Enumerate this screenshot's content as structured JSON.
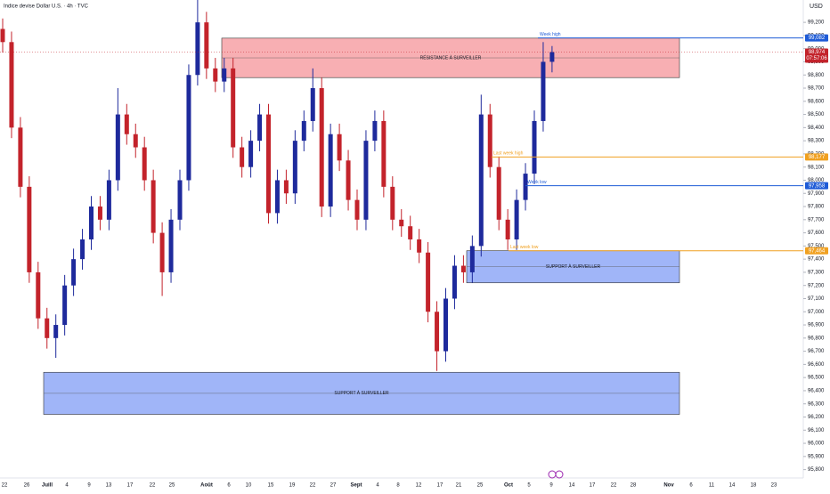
{
  "chart_data": {
    "type": "candlestick",
    "title": "Indice devise Dollar U.S. · 4h · TVC",
    "currency": "USD",
    "x_labels": [
      "22",
      "26",
      "Juill",
      "4",
      "9",
      "13",
      "17",
      "22",
      "25",
      "Août",
      "6",
      "10",
      "15",
      "19",
      "22",
      "27",
      "Sept",
      "4",
      "8",
      "12",
      "17",
      "21",
      "25",
      "Oct",
      "5",
      "9",
      "14",
      "17",
      "22",
      "28",
      "Nov",
      "6",
      "11",
      "14",
      "18",
      "23"
    ],
    "open": [
      99150,
      99050,
      98400,
      97950,
      97300,
      96950,
      96800,
      96900,
      97200,
      97400,
      97550,
      97800,
      97700,
      98000,
      98500,
      98350,
      98250,
      98000,
      97600,
      97300,
      97700,
      98000,
      98800,
      99200,
      98850,
      98750,
      98850,
      98250,
      98100,
      98300,
      98500,
      97750,
      98000,
      97900,
      98300,
      98450,
      98700,
      97800,
      98350,
      98150,
      97850,
      97700,
      98300,
      98450,
      97950,
      97700,
      97650,
      97550,
      97450,
      97000,
      96700,
      97100,
      97350,
      97300,
      97500,
      98500,
      98100,
      97700,
      97550,
      97850,
      98050,
      98450,
      98900
    ],
    "high": [
      99230,
      99130,
      98480,
      98030,
      97380,
      97030,
      96980,
      97280,
      97480,
      97630,
      97880,
      97880,
      98080,
      98700,
      98580,
      98430,
      98330,
      98080,
      97680,
      97780,
      98080,
      98880,
      99370,
      99280,
      98930,
      98930,
      98930,
      98330,
      98380,
      98580,
      98580,
      98080,
      98080,
      98380,
      98530,
      98850,
      98780,
      98430,
      98430,
      98230,
      97930,
      98380,
      98530,
      98530,
      98030,
      97780,
      97730,
      97630,
      97530,
      97080,
      97180,
      97430,
      97430,
      97580,
      98650,
      98580,
      98180,
      97780,
      97930,
      98130,
      98530,
      99050,
      99020
    ],
    "low": [
      98970,
      98320,
      97870,
      97220,
      96870,
      96720,
      96650,
      96820,
      97120,
      97320,
      97470,
      97620,
      97620,
      97920,
      98270,
      98170,
      97920,
      97520,
      97120,
      97220,
      97620,
      97920,
      98720,
      98770,
      98670,
      98670,
      98170,
      98020,
      98020,
      98220,
      97670,
      97670,
      97820,
      97820,
      98220,
      98370,
      97720,
      97720,
      98070,
      97770,
      97620,
      97620,
      98220,
      97870,
      97620,
      97570,
      97470,
      97370,
      96920,
      96550,
      96620,
      97020,
      97220,
      97220,
      97420,
      98020,
      97620,
      97470,
      97470,
      97770,
      97970,
      98370,
      98820
    ],
    "close": [
      99050,
      98400,
      97950,
      97300,
      96950,
      96800,
      96900,
      97200,
      97400,
      97550,
      97800,
      97700,
      98000,
      98500,
      98350,
      98250,
      98000,
      97600,
      97300,
      97700,
      98000,
      98800,
      99200,
      98850,
      98750,
      98850,
      98250,
      98100,
      98300,
      98500,
      97750,
      98000,
      97900,
      98300,
      98450,
      98700,
      97800,
      98350,
      98150,
      97850,
      97700,
      98300,
      98450,
      97950,
      97700,
      97650,
      97550,
      97450,
      97000,
      96700,
      97100,
      97350,
      97300,
      97500,
      98500,
      98100,
      97700,
      97550,
      97850,
      98050,
      98450,
      98900,
      98974
    ],
    "up_color": "#1e2a9c",
    "down_color": "#c3232b",
    "ylim": [
      95750,
      99370
    ],
    "yticks": [
      {
        "value": 95800,
        "label": "95,800"
      },
      {
        "value": 95900,
        "label": "95,900"
      },
      {
        "value": 96000,
        "label": "96,000"
      },
      {
        "value": 96100,
        "label": "96,100"
      },
      {
        "value": 96200,
        "label": "96,200"
      },
      {
        "value": 96300,
        "label": "96,300"
      },
      {
        "value": 96400,
        "label": "96,400"
      },
      {
        "value": 96500,
        "label": "96,500"
      },
      {
        "value": 96600,
        "label": "96,600"
      },
      {
        "value": 96700,
        "label": "96,700"
      },
      {
        "value": 96800,
        "label": "96,800"
      },
      {
        "value": 96900,
        "label": "96,900"
      },
      {
        "value": 97000,
        "label": "97,000"
      },
      {
        "value": 97100,
        "label": "97,100"
      },
      {
        "value": 97200,
        "label": "97,200"
      },
      {
        "value": 97300,
        "label": "97,300"
      },
      {
        "value": 97400,
        "label": "97,400"
      },
      {
        "value": 97500,
        "label": "97,500"
      },
      {
        "value": 97600,
        "label": "97,600"
      },
      {
        "value": 97700,
        "label": "97,700"
      },
      {
        "value": 97800,
        "label": "97,800"
      },
      {
        "value": 97900,
        "label": "97,900"
      },
      {
        "value": 98000,
        "label": "98,000"
      },
      {
        "value": 98100,
        "label": "98,100"
      },
      {
        "value": 98200,
        "label": "98,200"
      },
      {
        "value": 98300,
        "label": "98,300"
      },
      {
        "value": 98400,
        "label": "98,400"
      },
      {
        "value": 98500,
        "label": "98,500"
      },
      {
        "value": 98600,
        "label": "98,600"
      },
      {
        "value": 98700,
        "label": "98,700"
      },
      {
        "value": 98800,
        "label": "98,800"
      },
      {
        "value": 98900,
        "label": "98,900"
      },
      {
        "value": 99000,
        "label": "99,000"
      },
      {
        "value": 99100,
        "label": "99,100"
      },
      {
        "value": 99200,
        "label": "99,200"
      }
    ],
    "zones": [
      {
        "label": "RÉSISTANCE À SURVEILLER",
        "top": 99080,
        "bottom": 98780,
        "color": "#f7a1a6"
      },
      {
        "label": "SUPPORT À SURVEILLER",
        "top": 97464,
        "bottom": 97220,
        "color": "#8fa8f7"
      },
      {
        "label": "SUPPORT À SURVEILLER",
        "top": 96540,
        "bottom": 96220,
        "color": "#8fa8f7"
      }
    ],
    "levels": [
      {
        "label": "Week high",
        "value": 99082,
        "value_label": "99,082",
        "color": "#1e5bd6"
      },
      {
        "label": "Last week high",
        "value": 98177,
        "value_label": "98,177",
        "color": "#f0a020"
      },
      {
        "label": "Week low",
        "value": 97958,
        "value_label": "97,958",
        "color": "#1e5bd6"
      },
      {
        "label": "Last week low",
        "value": 97464,
        "value_label": "97,464",
        "color": "#f0a020"
      }
    ],
    "last_price": {
      "value": 98974,
      "value_label": "98,974",
      "countdown": "07:57:06",
      "color": "#c3232b"
    }
  }
}
